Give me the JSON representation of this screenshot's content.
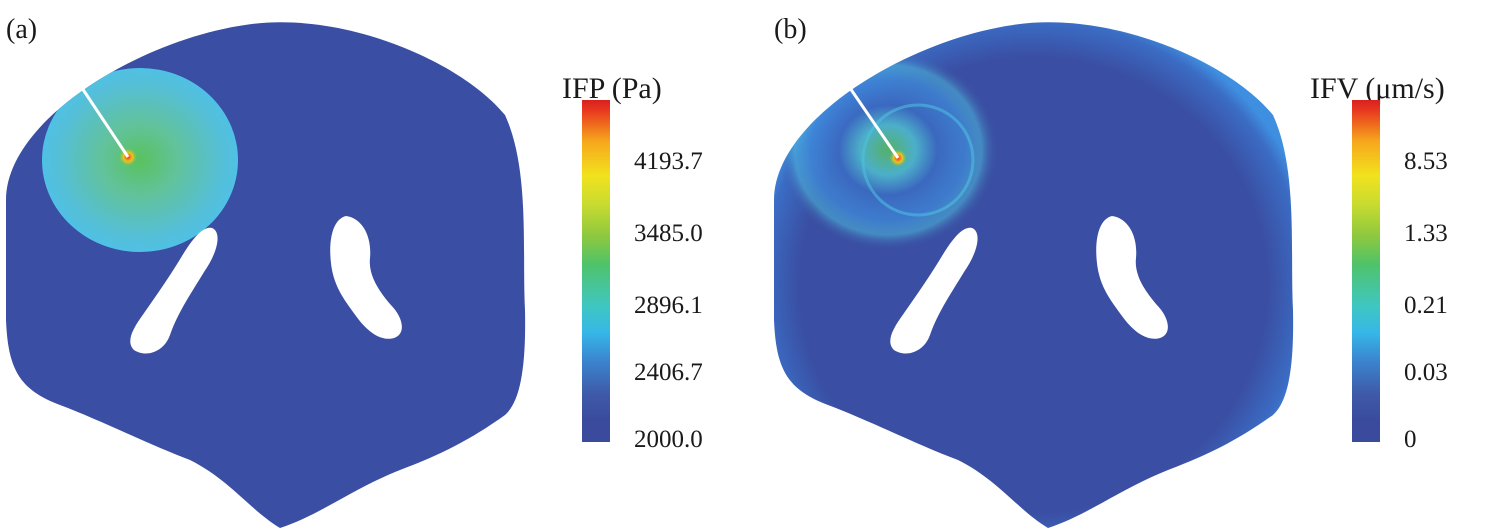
{
  "panel_a": {
    "label": "(a)",
    "colorbar": {
      "title": "IFP (Pa)",
      "ticks": [
        "4193.7",
        "3485.0",
        "2896.1",
        "2406.7",
        "2000.0"
      ]
    }
  },
  "panel_b": {
    "label": "(b)",
    "colorbar": {
      "title": "IFV (μm/s)",
      "ticks": [
        "8.53",
        "1.33",
        "0.21",
        "0.03",
        "0"
      ]
    }
  },
  "colors": {
    "tissue_base": "#3a4fa3",
    "hot_spot": "#e8381f",
    "ring": "#4fc3e0",
    "core": "#6cc46a"
  }
}
